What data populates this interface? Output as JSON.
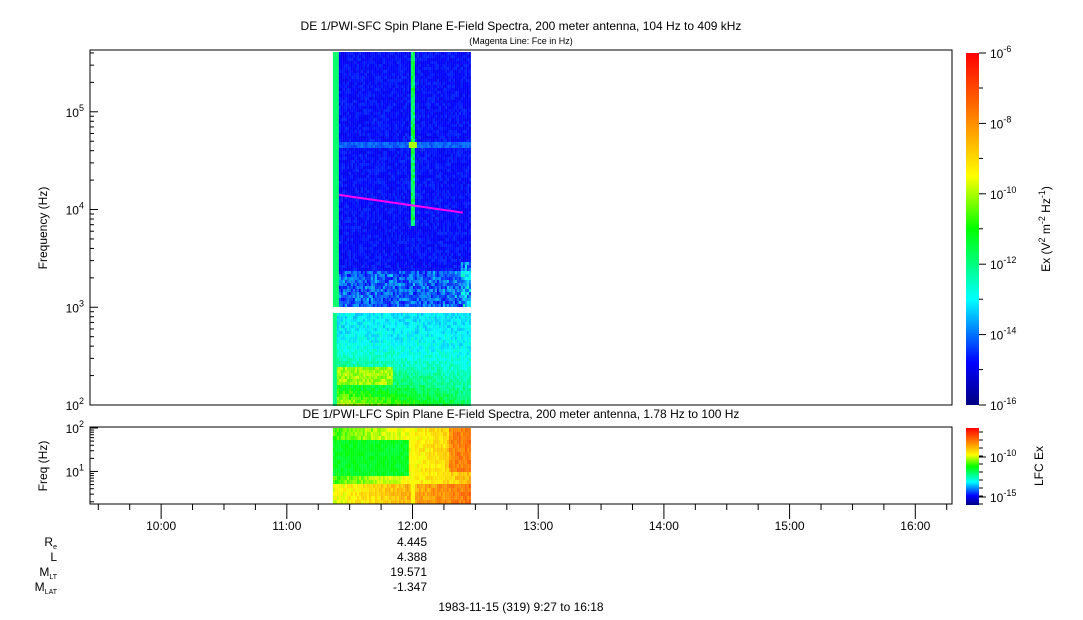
{
  "chart_data": [
    {
      "type": "heatmap",
      "title": "DE 1/PWI-SFC  Spin Plane E-Field Spectra, 200 meter antenna, 104 Hz to 409 kHz",
      "subtitle": "(Magenta Line: Fce in Hz)",
      "ylabel": "Frequency (Hz)",
      "yscale": "log",
      "ylim": [
        100,
        409000
      ],
      "ytick_labels": [
        {
          "base": "10",
          "exp": "2",
          "value": 100
        },
        {
          "base": "10",
          "exp": "3",
          "value": 1000
        },
        {
          "base": "10",
          "exp": "4",
          "value": 10000
        },
        {
          "base": "10",
          "exp": "5",
          "value": 100000
        }
      ],
      "xlim": [
        "09:27",
        "16:18"
      ],
      "data_time_range": [
        "11:22",
        "12:27"
      ],
      "colorbar": {
        "label_main": "Ex (V",
        "label_parts": [
          "2",
          " m",
          "-2",
          " Hz",
          "-1",
          ")"
        ],
        "scale": "log",
        "range": [
          1e-16,
          1e-06
        ],
        "tick_labels": [
          {
            "base": "10",
            "exp": "-6"
          },
          {
            "base": "10",
            "exp": "-8"
          },
          {
            "base": "10",
            "exp": "-10"
          },
          {
            "base": "10",
            "exp": "-12"
          },
          {
            "base": "10",
            "exp": "-14"
          },
          {
            "base": "10",
            "exp": "-16"
          }
        ]
      },
      "fce_line": {
        "color": "#ff00ff",
        "time": [
          "11:25",
          "12:24"
        ],
        "freq_hz": [
          14100,
          9300
        ]
      }
    },
    {
      "type": "heatmap",
      "title": "DE 1/PWI-LFC  Spin Plane E-Field Spectra, 200 meter antenna, 1.78 Hz to 100 Hz",
      "ylabel": "Freq (Hz)",
      "yscale": "log",
      "ylim": [
        1.78,
        100
      ],
      "ytick_labels": [
        {
          "base": "10",
          "exp": "2",
          "value": 100
        },
        {
          "base": "10",
          "exp": "1",
          "value": 10
        }
      ],
      "colorbar": {
        "label": "LFC Ex",
        "scale": "log",
        "tick_labels": [
          {
            "base": "10",
            "exp": "-10"
          },
          {
            "base": "10",
            "exp": "-15"
          }
        ]
      }
    }
  ],
  "xaxis": {
    "tick_labels": [
      "10:00",
      "11:00",
      "12:00",
      "13:00",
      "14:00",
      "15:00",
      "16:00"
    ]
  },
  "ephemeris": {
    "rows": [
      {
        "label": "R",
        "sub": "e",
        "value": "4.445"
      },
      {
        "label": "L",
        "sub": "",
        "value": "4.388"
      },
      {
        "label": "M",
        "sub": "LT",
        "value": "19.571"
      },
      {
        "label": "M",
        "sub": "LAT",
        "value": "-1.347"
      }
    ],
    "footer": "1983-11-15 (319) 9:27 to 16:18"
  }
}
